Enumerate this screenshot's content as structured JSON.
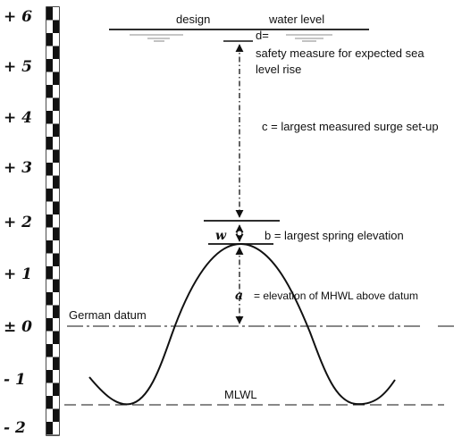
{
  "scale": {
    "ticks": [
      "+ 6",
      "+ 5",
      "+ 4",
      "+ 3",
      "+ 2",
      "+ 1",
      "± 0",
      "- 1",
      "- 2"
    ]
  },
  "labels": {
    "design": "design",
    "water_level": "water level",
    "d_symbol": "d=",
    "d_text_line1": "safety measure for expected sea",
    "d_text_line2": "level rise",
    "c_text": "c = largest measured surge set-up",
    "w_symbol": "w",
    "b_text": "b = largest spring elevation",
    "a_symbol": "a",
    "a_text": "= elevation of MHWL above datum",
    "german_datum": "German datum",
    "mlwl": "MLWL"
  }
}
